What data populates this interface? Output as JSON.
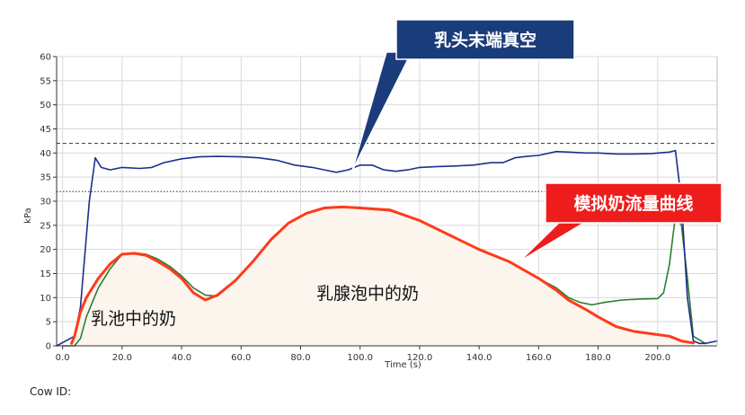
{
  "chart_data": {
    "type": "line",
    "title": "",
    "xlabel": "Time (s)",
    "ylabel": "kPa",
    "xlim": [
      -2,
      220
    ],
    "ylim": [
      0,
      60
    ],
    "x_ticks": [
      "0.0",
      "20.0",
      "40.0",
      "60.0",
      "80.0",
      "100.0",
      "120.0",
      "140.0",
      "160.0",
      "180.0",
      "200.0"
    ],
    "y_ticks": [
      "0",
      "5",
      "10",
      "15",
      "20",
      "25",
      "30",
      "35",
      "40",
      "45",
      "50",
      "55",
      "60"
    ],
    "grid": true,
    "reference_lines": [
      {
        "style": "dashed",
        "y": 42,
        "color": "#333333"
      },
      {
        "style": "dotted",
        "y": 32,
        "color": "#333333"
      }
    ],
    "series": [
      {
        "color": "#1f2e8c",
        "x": [
          -2,
          4,
          6,
          9,
          11,
          13,
          16,
          20,
          26,
          30,
          34,
          40,
          46,
          52,
          60,
          66,
          72,
          78,
          84,
          88,
          92,
          96,
          100,
          104,
          108,
          112,
          116,
          120,
          126,
          132,
          138,
          144,
          148,
          152,
          156,
          160,
          166,
          170,
          176,
          180,
          186,
          192,
          198,
          204,
          206,
          208,
          210,
          212,
          214,
          216,
          220
        ],
        "y": [
          0,
          2,
          8,
          30,
          39,
          37,
          36.5,
          37,
          36.8,
          37,
          38,
          38.8,
          39.2,
          39.3,
          39.2,
          39,
          38.5,
          37.5,
          37,
          36.5,
          36,
          36.5,
          37.5,
          37.5,
          36.5,
          36.2,
          36.5,
          37,
          37.2,
          37.3,
          37.5,
          38,
          38,
          39,
          39.3,
          39.5,
          40.3,
          40.2,
          40,
          40,
          39.8,
          39.8,
          39.9,
          40.2,
          40.5,
          30,
          10,
          1,
          0.5,
          0.5,
          1
        ]
      },
      {
        "color": "#2e7d32",
        "x": [
          0,
          4,
          6,
          8,
          10,
          12,
          16,
          20,
          24,
          28,
          32,
          36,
          40,
          44,
          48,
          52,
          58,
          64,
          70,
          76,
          82,
          88,
          94,
          100,
          110,
          120,
          130,
          140,
          150,
          160,
          166,
          170,
          174,
          178,
          182,
          188,
          194,
          200,
          202,
          204,
          206,
          208,
          210,
          212,
          216
        ],
        "y": [
          0,
          0,
          1.5,
          6,
          9,
          12,
          16,
          19,
          19.3,
          19,
          18,
          16.5,
          14.5,
          12,
          10.5,
          10.3,
          13.5,
          17.5,
          22,
          25.5,
          27.5,
          28.5,
          28.8,
          28.5,
          28,
          26,
          23,
          20,
          17.5,
          14,
          12,
          10,
          9,
          8.5,
          9,
          9.5,
          9.7,
          9.8,
          11,
          17,
          27,
          25,
          14,
          2,
          0.5
        ]
      },
      {
        "color": "#ff3b1a",
        "x": [
          3,
          4,
          6,
          8,
          10,
          12,
          16,
          20,
          24,
          28,
          32,
          36,
          40,
          44,
          48,
          52,
          58,
          64,
          70,
          76,
          82,
          88,
          94,
          100,
          110,
          120,
          130,
          140,
          150,
          160,
          166,
          170,
          176,
          180,
          186,
          192,
          198,
          204,
          206,
          208,
          210,
          212
        ],
        "y": [
          0.5,
          2,
          7,
          10,
          12,
          14,
          17,
          19,
          19.2,
          18.8,
          17.5,
          16,
          14,
          11,
          9.5,
          10.5,
          13.5,
          17.5,
          22,
          25.5,
          27.5,
          28.6,
          28.8,
          28.6,
          28.2,
          26,
          23,
          20,
          17.5,
          14,
          11.5,
          9.5,
          7.5,
          6,
          4,
          3,
          2.5,
          2,
          1.5,
          1,
          0.8,
          0.6
        ]
      }
    ],
    "annotations": [
      {
        "text": "乳头末端真空",
        "kind": "callout",
        "color": "#1b3c7a"
      },
      {
        "text": "模拟奶流量曲线",
        "kind": "callout",
        "color": "#ef1c1c"
      },
      {
        "text": "乳腺泡中的奶",
        "kind": "region-label"
      },
      {
        "text": "乳池中的奶",
        "kind": "region-label"
      }
    ],
    "fill_color": "#fbf5ee"
  },
  "footer": {
    "cow_id_label": "Cow ID:"
  }
}
